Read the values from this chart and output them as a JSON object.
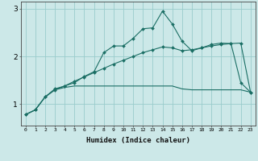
{
  "xlabel": "Humidex (Indice chaleur)",
  "background_color": "#cce8e8",
  "grid_color": "#99cccc",
  "line_color": "#1a6e64",
  "x_values": [
    0,
    1,
    2,
    3,
    4,
    5,
    6,
    7,
    8,
    9,
    10,
    11,
    12,
    13,
    14,
    15,
    16,
    17,
    18,
    19,
    20,
    21,
    22,
    23
  ],
  "line1": [
    0.78,
    0.88,
    1.15,
    1.32,
    1.38,
    1.45,
    1.58,
    1.68,
    2.08,
    2.22,
    2.22,
    2.38,
    2.58,
    2.6,
    2.95,
    2.68,
    2.32,
    2.12,
    2.18,
    2.25,
    2.28,
    2.27,
    1.45,
    1.25
  ],
  "line2": [
    0.78,
    0.88,
    1.15,
    1.3,
    1.38,
    1.48,
    1.57,
    1.66,
    1.75,
    1.84,
    1.92,
    2.0,
    2.08,
    2.14,
    2.2,
    2.18,
    2.12,
    2.14,
    2.18,
    2.22,
    2.25,
    2.27,
    2.28,
    1.25
  ],
  "line3": [
    0.78,
    0.88,
    1.15,
    1.3,
    1.35,
    1.38,
    1.38,
    1.38,
    1.38,
    1.38,
    1.38,
    1.38,
    1.38,
    1.38,
    1.38,
    1.38,
    1.32,
    1.3,
    1.3,
    1.3,
    1.3,
    1.3,
    1.3,
    1.25
  ],
  "ylim": [
    0.55,
    3.15
  ],
  "yticks": [
    1,
    2,
    3
  ],
  "xticks": [
    0,
    1,
    2,
    3,
    4,
    5,
    6,
    7,
    8,
    9,
    10,
    11,
    12,
    13,
    14,
    15,
    16,
    17,
    18,
    19,
    20,
    21,
    22,
    23
  ]
}
